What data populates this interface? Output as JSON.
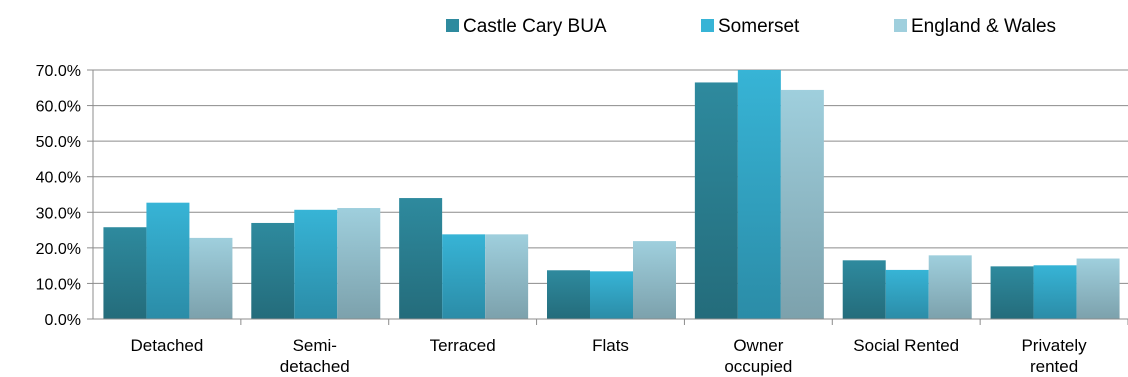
{
  "chart_data": {
    "type": "bar",
    "categories": [
      [
        "Detached"
      ],
      [
        "Semi-",
        "detached"
      ],
      [
        "Terraced"
      ],
      [
        "Flats"
      ],
      [
        "Owner",
        "occupied"
      ],
      [
        "Social Rented"
      ],
      [
        "Privately",
        "rented"
      ]
    ],
    "series": [
      {
        "name": "Castle Cary BUA",
        "color": "#2e8a9e",
        "values": [
          25.8,
          27.0,
          34.0,
          13.7,
          66.5,
          16.5,
          14.8
        ]
      },
      {
        "name": "Somerset",
        "color": "#37b4d6",
        "values": [
          32.7,
          30.7,
          23.8,
          13.4,
          70.2,
          13.8,
          15.1
        ]
      },
      {
        "name": "England & Wales",
        "color": "#9fcfdd",
        "values": [
          22.8,
          31.2,
          23.8,
          21.9,
          64.4,
          17.9,
          17.0
        ]
      }
    ],
    "ylim": [
      0,
      70
    ],
    "yticks": [
      "0.0%",
      "10.0%",
      "20.0%",
      "30.0%",
      "40.0%",
      "50.0%",
      "60.0%",
      "70.0%"
    ],
    "grid": true,
    "legend_position": "top-right",
    "title": "",
    "xlabel": "",
    "ylabel": ""
  }
}
